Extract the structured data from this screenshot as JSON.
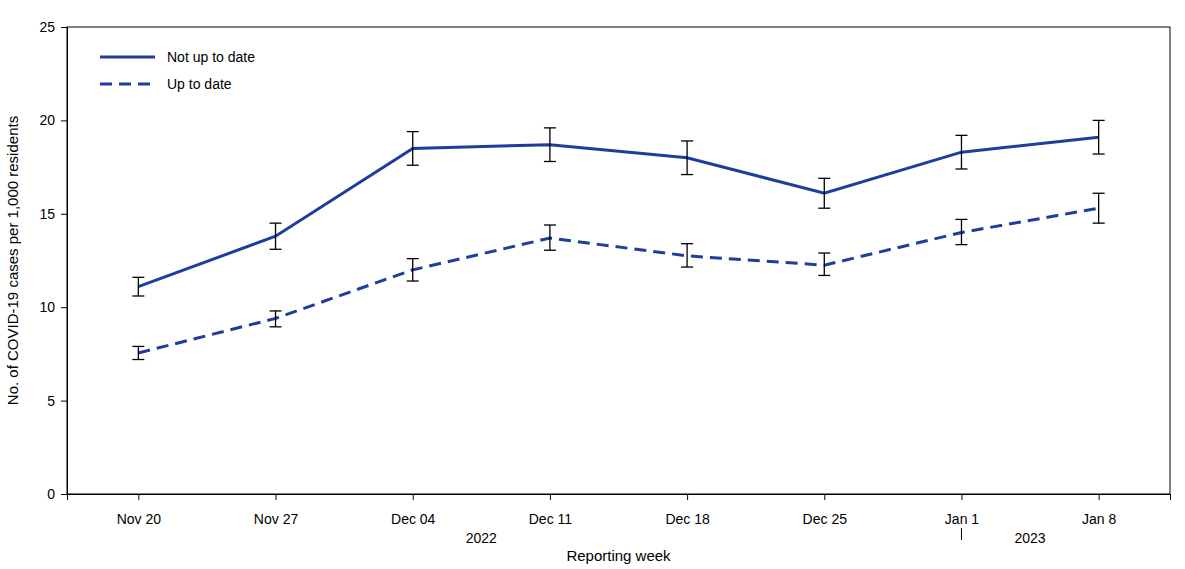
{
  "chart_data": {
    "type": "line",
    "x_label": "Reporting week",
    "y_label": "No. of COVID-19 cases per 1,000 residents",
    "categories": [
      "Nov 20",
      "Nov 27",
      "Dec 04",
      "Dec 11",
      "Dec 18",
      "Dec 25",
      "Jan 1",
      "Jan 8"
    ],
    "category_groups": [
      {
        "label": "2022",
        "categories": [
          "Nov 20",
          "Nov 27",
          "Dec 04",
          "Dec 11",
          "Dec 18",
          "Dec 25"
        ]
      },
      {
        "label": "2023",
        "categories": [
          "Jan 1",
          "Jan 8"
        ]
      }
    ],
    "series": [
      {
        "name": "Not up to date",
        "color": "#1f3e9c",
        "line_style": "solid",
        "values": [
          11.1,
          13.8,
          18.5,
          18.7,
          18.0,
          16.1,
          18.3,
          19.1
        ],
        "ci_lower": [
          10.6,
          13.1,
          17.6,
          17.8,
          17.1,
          15.3,
          17.4,
          18.2
        ],
        "ci_upper": [
          11.6,
          14.5,
          19.4,
          19.6,
          18.9,
          16.9,
          19.2,
          20.0
        ]
      },
      {
        "name": "Up to date",
        "color": "#1f3e9c",
        "line_style": "dashed",
        "values": [
          7.55,
          9.4,
          12.0,
          13.7,
          12.75,
          12.25,
          14.0,
          15.3
        ],
        "ci_lower": [
          7.2,
          8.95,
          11.4,
          13.05,
          12.15,
          11.7,
          13.35,
          14.5
        ],
        "ci_upper": [
          7.9,
          9.8,
          12.6,
          14.4,
          13.4,
          12.9,
          14.7,
          16.1
        ]
      }
    ],
    "ylim": [
      0,
      25
    ],
    "yticks": [
      0,
      5,
      10,
      15,
      20,
      25
    ],
    "legend": "upper left"
  }
}
